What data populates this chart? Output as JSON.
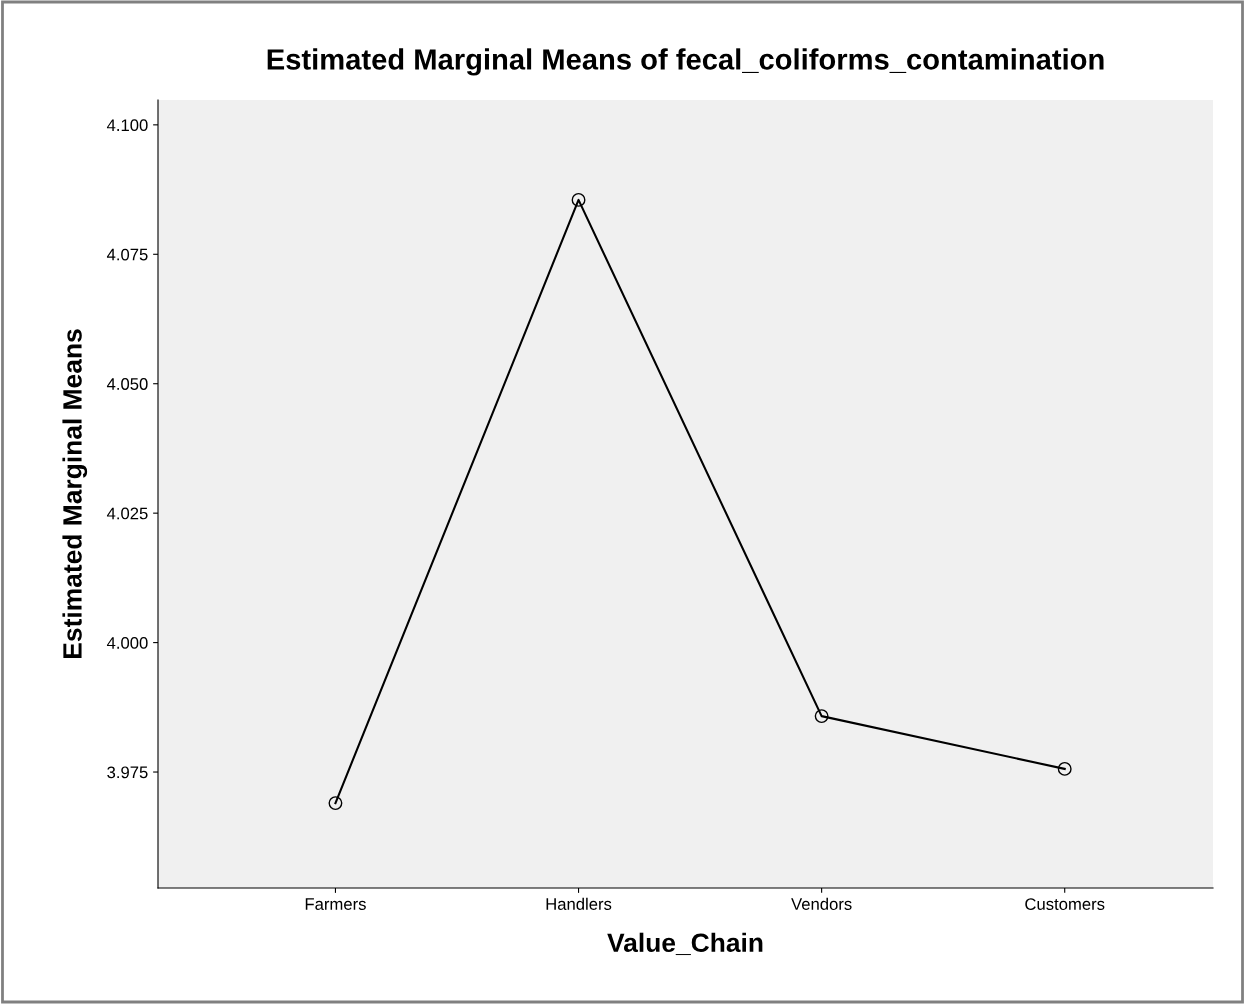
{
  "chart_data": {
    "type": "line",
    "title": "Estimated Marginal Means of fecal_coliforms_contamination",
    "xlabel": "Value_Chain",
    "ylabel": "Estimated Marginal Means",
    "categories": [
      "Farmers",
      "Handlers",
      "Vendors",
      "Customers"
    ],
    "series": [
      {
        "color": "#000000",
        "values": [
          3.969,
          4.0855,
          3.9858,
          3.9756
        ]
      }
    ],
    "ylim": [
      3.9526,
      4.1048
    ],
    "yticks": [
      {
        "value": 3.975,
        "label": "3.975"
      },
      {
        "value": 4.0,
        "label": "4.000"
      },
      {
        "value": 4.025,
        "label": "4.025"
      },
      {
        "value": 4.05,
        "label": "4.050"
      },
      {
        "value": 4.075,
        "label": "4.075"
      },
      {
        "value": 4.1,
        "label": "4.100"
      }
    ],
    "marker": "circle",
    "line_style": "solid",
    "grid": false
  }
}
